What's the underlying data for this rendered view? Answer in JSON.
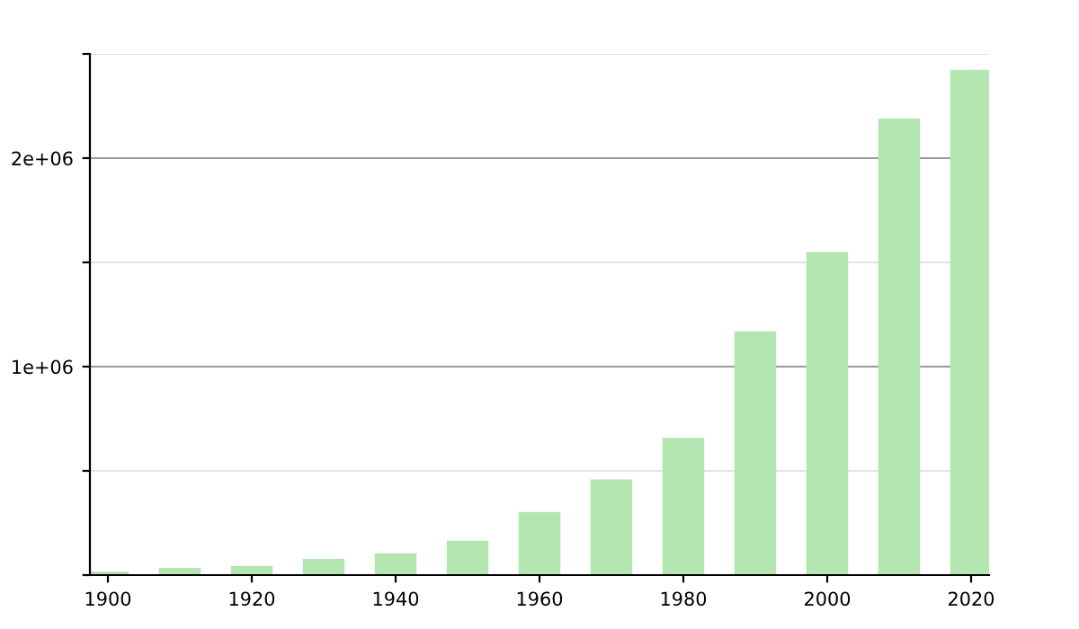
{
  "chart_data": {
    "type": "bar",
    "x": [
      1900,
      1910,
      1920,
      1930,
      1940,
      1950,
      1960,
      1970,
      1980,
      1990,
      2000,
      2010,
      2020
    ],
    "values": [
      17000,
      35000,
      43000,
      78000,
      104000,
      165000,
      303000,
      459000,
      658000,
      1169000,
      1550000,
      2190000,
      2424000
    ],
    "color": "#b3e5b0",
    "xlim": [
      1897.5,
      2022.5
    ],
    "xticks": [
      1900,
      1920,
      1940,
      1960,
      1980,
      2000,
      2020
    ],
    "ylim": [
      0,
      2500000
    ],
    "yticks": [
      {
        "value": 0,
        "label": null
      },
      {
        "value": 500000,
        "label": null
      },
      {
        "value": 1000000,
        "label": "1e+06"
      },
      {
        "value": 1500000,
        "label": null
      },
      {
        "value": 2000000,
        "label": "2e+06"
      },
      {
        "value": 2500000,
        "label": null
      }
    ],
    "grid": "y",
    "legend": false
  }
}
